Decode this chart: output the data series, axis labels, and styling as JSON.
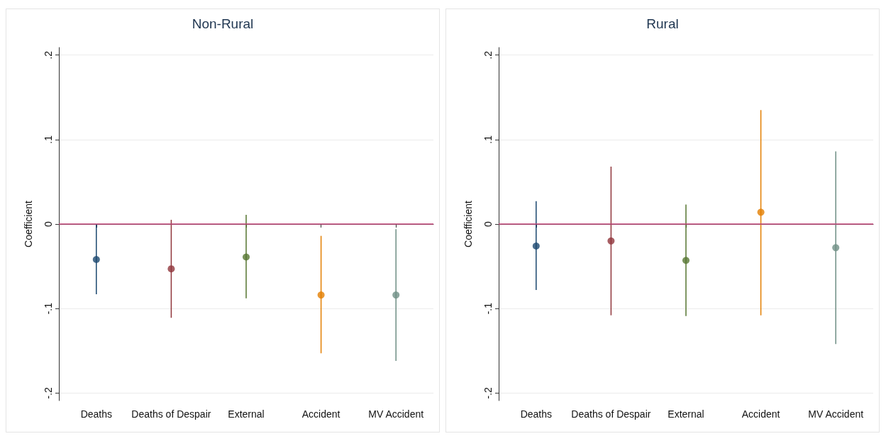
{
  "chart_data": [
    {
      "type": "scatter",
      "title": "Non-Rural",
      "ylabel": "Coefficient",
      "categories": [
        "Deaths",
        "Deaths of Despair",
        "External",
        "Accident",
        "MV Accident"
      ],
      "values": [
        -0.042,
        -0.053,
        -0.039,
        -0.084,
        -0.084
      ],
      "errors": [
        [
          -0.083,
          0.0
        ],
        [
          -0.111,
          0.005
        ],
        [
          -0.088,
          0.011
        ],
        [
          -0.153,
          -0.014
        ],
        [
          -0.162,
          -0.006
        ]
      ],
      "colors": [
        "#1a476f",
        "#90353b",
        "#55752f",
        "#e37e00",
        "#6e8e84"
      ],
      "ylim": [
        -0.209,
        0.209
      ],
      "yticks": [
        {
          "value": -0.2,
          "label": "-.2"
        },
        {
          "value": -0.1,
          "label": "-.1"
        },
        {
          "value": 0,
          "label": "0"
        },
        {
          "value": 0.1,
          "label": ".1"
        },
        {
          "value": 0.2,
          "label": ".2"
        }
      ],
      "ref_lines": [
        {
          "axis": "y",
          "value": 0,
          "color": "#c4467a"
        }
      ],
      "grid": "y",
      "marker": "circle"
    },
    {
      "type": "scatter",
      "title": "Rural",
      "ylabel": "Coefficient",
      "categories": [
        "Deaths",
        "Deaths of Despair",
        "External",
        "Accident",
        "MV Accident"
      ],
      "values": [
        -0.026,
        -0.02,
        -0.043,
        0.014,
        -0.028
      ],
      "errors": [
        [
          -0.078,
          0.027
        ],
        [
          -0.108,
          0.068
        ],
        [
          -0.109,
          0.023
        ],
        [
          -0.108,
          0.135
        ],
        [
          -0.142,
          0.086
        ]
      ],
      "colors": [
        "#1a476f",
        "#90353b",
        "#55752f",
        "#e37e00",
        "#6e8e84"
      ],
      "ylim": [
        -0.209,
        0.209
      ],
      "yticks": [
        {
          "value": -0.2,
          "label": "-.2"
        },
        {
          "value": -0.1,
          "label": "-.1"
        },
        {
          "value": 0,
          "label": "0"
        },
        {
          "value": 0.1,
          "label": ".1"
        },
        {
          "value": 0.2,
          "label": ".2"
        }
      ],
      "ref_lines": [
        {
          "axis": "y",
          "value": 0,
          "color": "#c4467a"
        }
      ],
      "grid": "y",
      "marker": "circle"
    }
  ]
}
